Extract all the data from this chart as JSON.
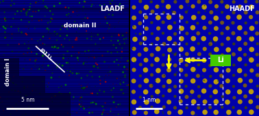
{
  "figsize": [
    3.78,
    1.7
  ],
  "dpi": 100,
  "left_panel": {
    "bg_color": "#000088",
    "title": "LAADF",
    "label_domain_I": "domain I",
    "label_domain_II": "domain II",
    "label_plane": "(011)ₚ",
    "scalebar_text": "5 nm",
    "line_color": "#ffffff",
    "stripe_dark": "#000055",
    "dot_green": "#005500",
    "dot_red": "#660000",
    "dot_bright_green": "#008800",
    "dot_bright_red": "#aa0000"
  },
  "right_panel": {
    "bg_color": "#0000aa",
    "title": "HAADF",
    "atom_color_bright": "#ccaa00",
    "atom_color_mid": "#aa8800",
    "atom_color_dim": "#886600",
    "atom_color_green": "#226600",
    "li_box_color": "#44cc00",
    "li_text": "Li",
    "scalebar_text": "1 nm",
    "arrow_color": "#ffff00",
    "dashed_line_color": "#ddddff"
  },
  "divider_color": "#111111"
}
